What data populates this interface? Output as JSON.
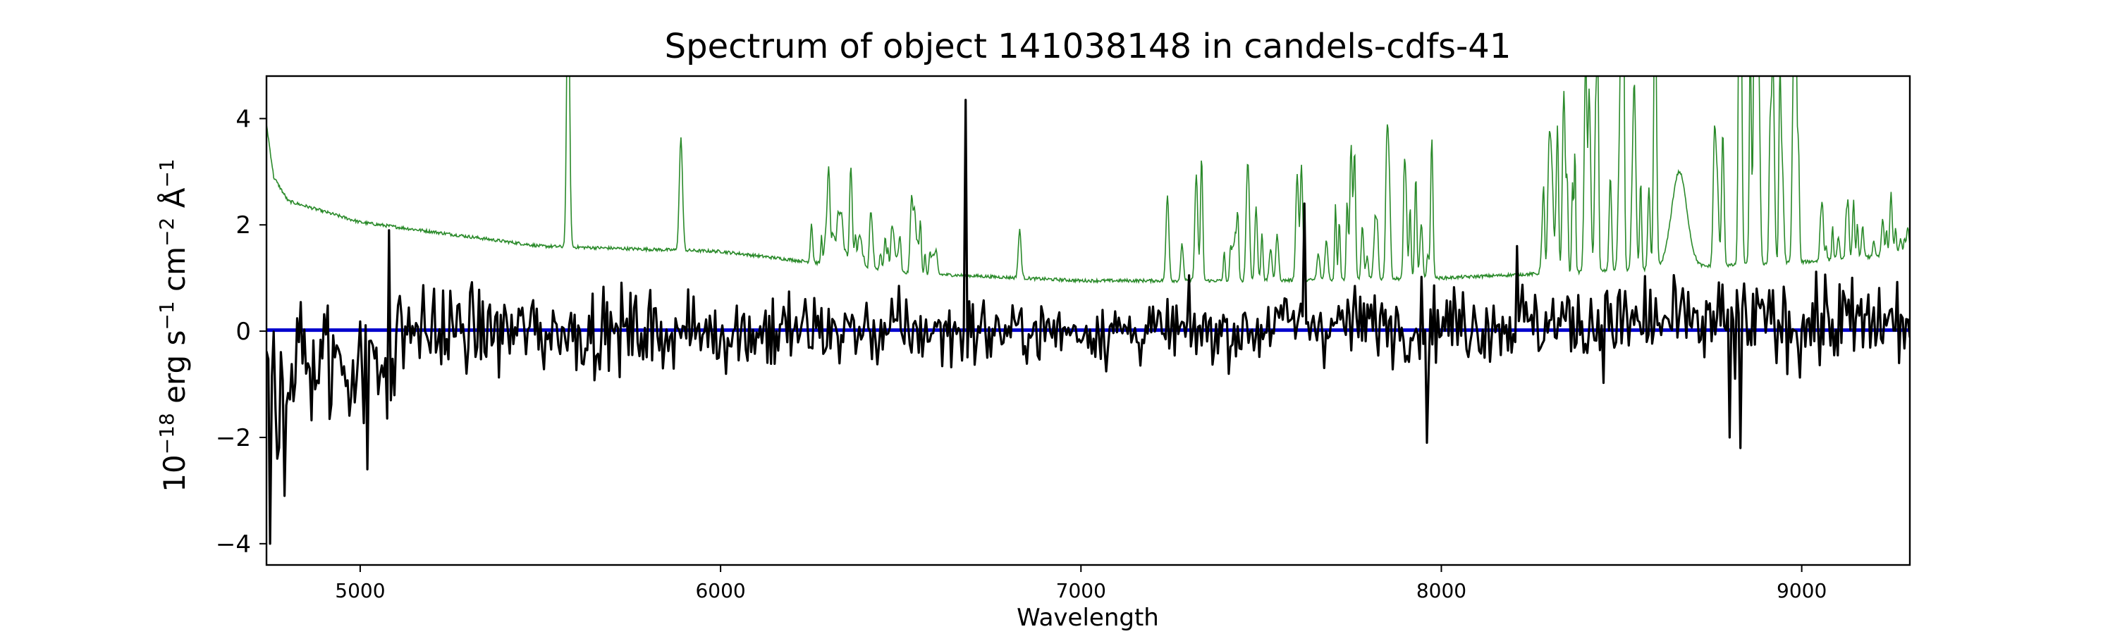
{
  "chart_data": {
    "type": "line",
    "title": "Spectrum of object 141038148 in candels-cdfs-41",
    "xlabel": "Wavelength",
    "ylabel": {
      "base": "10",
      "exp": "−18",
      "units": "erg s",
      "units_exp1": "−1",
      "cm": "cm",
      "cm_exp": "−2",
      "angstrom": "Å",
      "angstrom_exp": "−1"
    },
    "xlim": [
      4740,
      9300
    ],
    "ylim": [
      -4.4,
      4.8
    ],
    "x_ticks": [
      5000,
      6000,
      7000,
      8000,
      9000
    ],
    "x_tick_labels": [
      "5000",
      "6000",
      "7000",
      "8000",
      "9000"
    ],
    "y_ticks": [
      -4,
      -2,
      0,
      2,
      4
    ],
    "y_tick_labels": [
      "−4",
      "−2",
      "0",
      "2",
      "4"
    ],
    "grid": false,
    "series": [
      {
        "role": "sky",
        "color": "#2a8a2a",
        "width": 1.6,
        "baseline": [
          [
            4740,
            3.9
          ],
          [
            4760,
            2.9
          ],
          [
            4800,
            2.45
          ],
          [
            5000,
            2.05
          ],
          [
            5500,
            1.6
          ],
          [
            6000,
            1.5
          ],
          [
            6500,
            1.1
          ],
          [
            7000,
            0.95
          ],
          [
            7500,
            0.95
          ],
          [
            8000,
            1.0
          ],
          [
            8500,
            1.15
          ],
          [
            9000,
            1.3
          ],
          [
            9300,
            1.45
          ]
        ],
        "lines": [
          [
            5577,
            5.5,
            8
          ],
          [
            5890,
            2.1,
            9
          ],
          [
            6300,
            1.8,
            7
          ],
          [
            6363,
            0.9,
            7
          ],
          [
            6830,
            0.9,
            8
          ],
          [
            7240,
            1.6,
            8
          ],
          [
            7320,
            2.0,
            8
          ],
          [
            7600,
            2.0,
            8
          ],
          [
            7750,
            1.9,
            8
          ],
          [
            7850,
            2.0,
            8
          ],
          [
            7900,
            2.0,
            8
          ],
          [
            8300,
            1.9,
            8
          ],
          [
            8340,
            3.4,
            8
          ],
          [
            8400,
            3.0,
            8
          ],
          [
            8430,
            2.8,
            8
          ],
          [
            8500,
            2.3,
            8
          ],
          [
            8830,
            4.0,
            8
          ],
          [
            8880,
            4.0,
            8
          ],
          [
            8920,
            3.8,
            8
          ]
        ],
        "forest_ranges": [
          [
            6250,
            6600,
            0.45,
            60
          ],
          [
            7250,
            7980,
            1.3,
            40
          ],
          [
            8280,
            8600,
            2.2,
            30
          ],
          [
            8750,
            9000,
            3.0,
            18
          ],
          [
            9050,
            9300,
            0.6,
            25
          ]
        ],
        "bump": [
          8660,
          1.8,
          30
        ]
      },
      {
        "role": "model",
        "color": "#0000cc",
        "width": 5,
        "x": [
          4740,
          9300
        ],
        "values": [
          0.02,
          0.02
        ]
      },
      {
        "role": "spectrum",
        "color": "#000000",
        "width": 3.2,
        "noise_envelope": [
          [
            4740,
            1.5
          ],
          [
            5200,
            0.8
          ],
          [
            6000,
            0.75
          ],
          [
            7000,
            0.55
          ],
          [
            8000,
            0.7
          ],
          [
            9000,
            0.9
          ],
          [
            9300,
            0.8
          ]
        ],
        "features": [
          [
            4750,
            -4.0
          ],
          [
            4790,
            -3.1
          ],
          [
            4770,
            -2.4
          ],
          [
            5020,
            -2.6
          ],
          [
            5080,
            1.9
          ],
          [
            6680,
            4.35
          ],
          [
            7620,
            2.4
          ],
          [
            7960,
            -2.1
          ],
          [
            8830,
            -2.2
          ],
          [
            8800,
            -2.0
          ],
          [
            8210,
            1.6
          ]
        ]
      }
    ]
  }
}
